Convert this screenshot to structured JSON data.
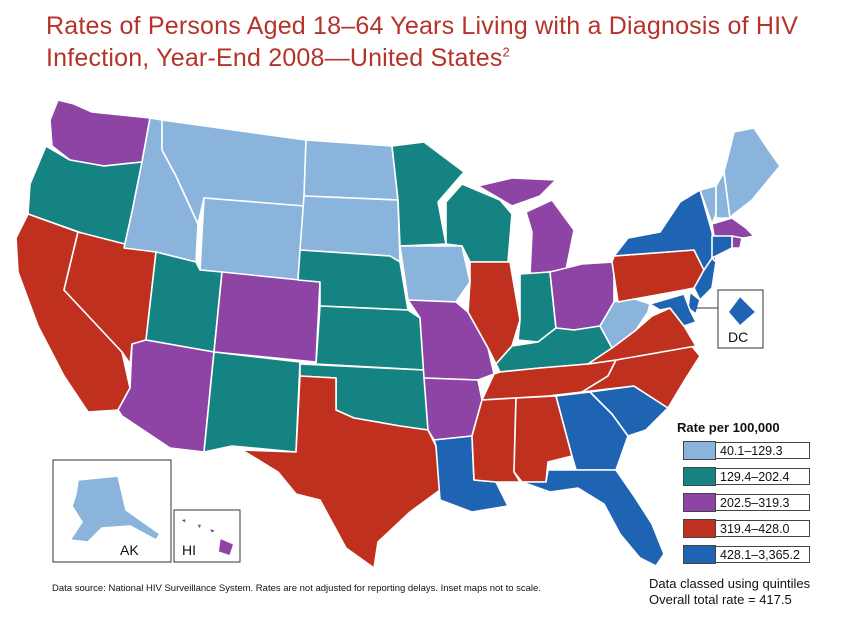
{
  "title": {
    "text": "Rates of Persons Aged 18–64 Years Living with a Diagnosis of HIV Infection, Year-End 2008—United States",
    "footnote": "2"
  },
  "legend": {
    "title": "Rate per 100,000",
    "classes": [
      {
        "label": "40.1–129.3",
        "color": "#8ab4dc"
      },
      {
        "label": "129.4–202.4",
        "color": "#168383"
      },
      {
        "label": "202.5–319.3",
        "color": "#8e44a4"
      },
      {
        "label": "319.4–428.0",
        "color": "#c0301f"
      },
      {
        "label": "428.1–3,365.2",
        "color": "#1f64b3"
      }
    ]
  },
  "insets": {
    "alaska": "AK",
    "hawaii": "HI",
    "dc": "DC"
  },
  "method_note": "Data classed using quintiles",
  "overall_rate": "Overall total rate = 417.5",
  "source": "Data source: National HIV Surveillance System. Rates are not adjusted for reporting delays. Inset maps not to scale.",
  "state_classes": {
    "WA": 2,
    "OR": 1,
    "CA": 3,
    "NV": 3,
    "ID": 0,
    "MT": 0,
    "WY": 0,
    "UT": 1,
    "AZ": 2,
    "CO": 2,
    "NM": 1,
    "ND": 0,
    "SD": 0,
    "NE": 1,
    "KS": 1,
    "OK": 1,
    "TX": 3,
    "MN": 1,
    "IA": 0,
    "MO": 2,
    "AR": 2,
    "LA": 4,
    "WI": 1,
    "IL": 3,
    "MI": 2,
    "IN": 1,
    "OH": 2,
    "KY": 1,
    "TN": 3,
    "MS": 3,
    "AL": 3,
    "GA": 4,
    "FL": 4,
    "SC": 4,
    "NC": 3,
    "VA": 3,
    "WV": 0,
    "PA": 3,
    "NY": 4,
    "VT": 0,
    "NH": 0,
    "ME": 0,
    "MA": 2,
    "RI": 2,
    "CT": 4,
    "NJ": 4,
    "DE": 4,
    "MD": 4,
    "DC": 4,
    "AK": 0,
    "HI": 2
  }
}
